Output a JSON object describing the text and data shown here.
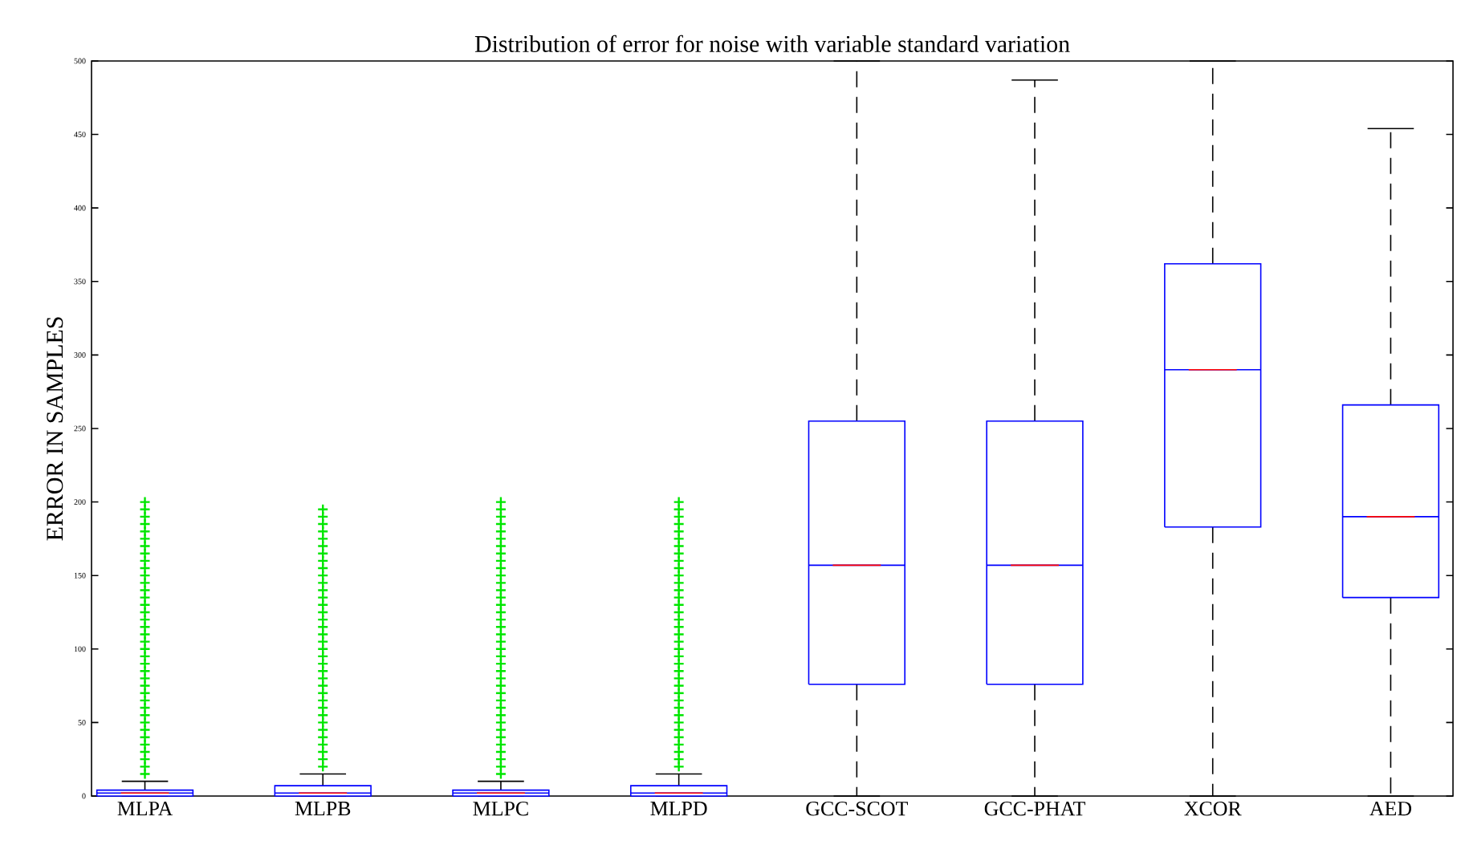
{
  "chart_data": {
    "type": "box",
    "title": "Distribution of error for noise with variable standard variation",
    "ylabel": "ERROR IN SAMPLES",
    "categories": [
      "MLPA",
      "MLPB",
      "MLPC",
      "MLPD",
      "GCC-SCOT",
      "GCC-PHAT",
      "XCOR",
      "AED"
    ],
    "ylim": [
      0,
      500
    ],
    "yticks": [
      0,
      50,
      100,
      150,
      200,
      250,
      300,
      350,
      400,
      450,
      500
    ],
    "marker": "cross",
    "boxes": [
      {
        "low": 0,
        "q1": 0,
        "median": 2,
        "q3": 4,
        "high": 10,
        "outliers": [
          15,
          20,
          25,
          30,
          35,
          40,
          45,
          50,
          55,
          60,
          65,
          70,
          75,
          80,
          85,
          90,
          95,
          100,
          105,
          110,
          115,
          120,
          125,
          130,
          135,
          140,
          145,
          150,
          155,
          160,
          165,
          170,
          175,
          180,
          185,
          190,
          195,
          200
        ]
      },
      {
        "low": 0,
        "q1": 0,
        "median": 2,
        "q3": 7,
        "high": 15,
        "outliers": [
          20,
          25,
          30,
          35,
          40,
          45,
          50,
          55,
          60,
          65,
          70,
          75,
          80,
          85,
          90,
          95,
          100,
          105,
          110,
          115,
          120,
          125,
          130,
          135,
          140,
          145,
          150,
          155,
          160,
          165,
          170,
          175,
          180,
          185,
          190,
          195
        ]
      },
      {
        "low": 0,
        "q1": 0,
        "median": 2,
        "q3": 4,
        "high": 10,
        "outliers": [
          15,
          20,
          25,
          30,
          35,
          40,
          45,
          50,
          55,
          60,
          65,
          70,
          75,
          80,
          85,
          90,
          95,
          100,
          105,
          110,
          115,
          120,
          125,
          130,
          135,
          140,
          145,
          150,
          155,
          160,
          165,
          170,
          175,
          180,
          185,
          190,
          195,
          200
        ]
      },
      {
        "low": 0,
        "q1": 0,
        "median": 2,
        "q3": 7,
        "high": 15,
        "outliers": [
          20,
          25,
          30,
          35,
          40,
          45,
          50,
          55,
          60,
          65,
          70,
          75,
          80,
          85,
          90,
          95,
          100,
          105,
          110,
          115,
          120,
          125,
          130,
          135,
          140,
          145,
          150,
          155,
          160,
          165,
          170,
          175,
          180,
          185,
          190,
          195,
          200
        ]
      },
      {
        "low": 0,
        "q1": 76,
        "median": 157,
        "q3": 255,
        "high": 500
      },
      {
        "low": 0,
        "q1": 76,
        "median": 157,
        "q3": 255,
        "high": 487
      },
      {
        "low": 0,
        "q1": 183,
        "median": 290,
        "q3": 362,
        "high": 500
      },
      {
        "low": 0,
        "q1": 135,
        "median": 190,
        "q3": 266,
        "high": 454
      }
    ]
  }
}
